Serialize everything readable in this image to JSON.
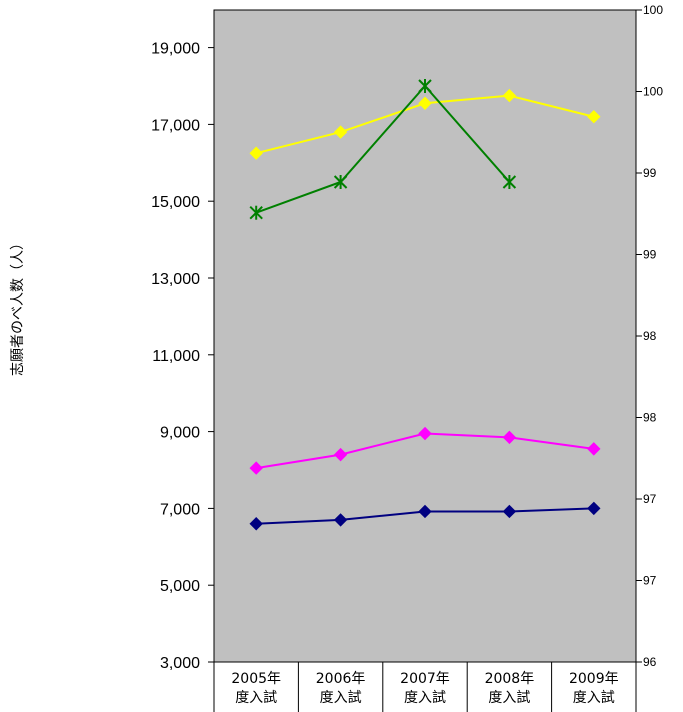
{
  "chart_data": {
    "type": "line",
    "categories": [
      [
        "2005年",
        "度入試"
      ],
      [
        "2006年",
        "度入試"
      ],
      [
        "2007年",
        "度入試"
      ],
      [
        "2008年",
        "度入試"
      ],
      [
        "2009年",
        "度入試"
      ]
    ],
    "ylabel": "志願者のべ人数（人）",
    "y_left": {
      "min": 3000,
      "max": 20500,
      "ticks": [
        3000,
        5000,
        7000,
        9000,
        11000,
        13000,
        15000,
        17000,
        19000
      ],
      "tick_labels": [
        "3,000",
        "5,000",
        "7,000",
        "9,000",
        "11,000",
        "13,000",
        "15,000",
        "17,000",
        "19,000"
      ]
    },
    "y_right": {
      "min": 96,
      "max": 100,
      "tick_labels": [
        "96",
        "97",
        "97",
        "98",
        "98",
        "99",
        "99",
        "100",
        "100"
      ]
    },
    "grid": false,
    "plot_background": "#c0c0c0",
    "series": [
      {
        "color": "#ffff00",
        "marker": "diamond",
        "values": [
          16250,
          16800,
          17550,
          17750,
          17200
        ]
      },
      {
        "color": "#008000",
        "marker": "asterisk",
        "values": [
          14700,
          15500,
          18000,
          15500,
          null
        ]
      },
      {
        "color": "#ff00ff",
        "marker": "diamond",
        "values": [
          8050,
          8400,
          8950,
          8850,
          8550
        ]
      },
      {
        "color": "#000080",
        "marker": "diamond",
        "values": [
          6600,
          6700,
          6920,
          6920,
          7000
        ]
      }
    ]
  }
}
